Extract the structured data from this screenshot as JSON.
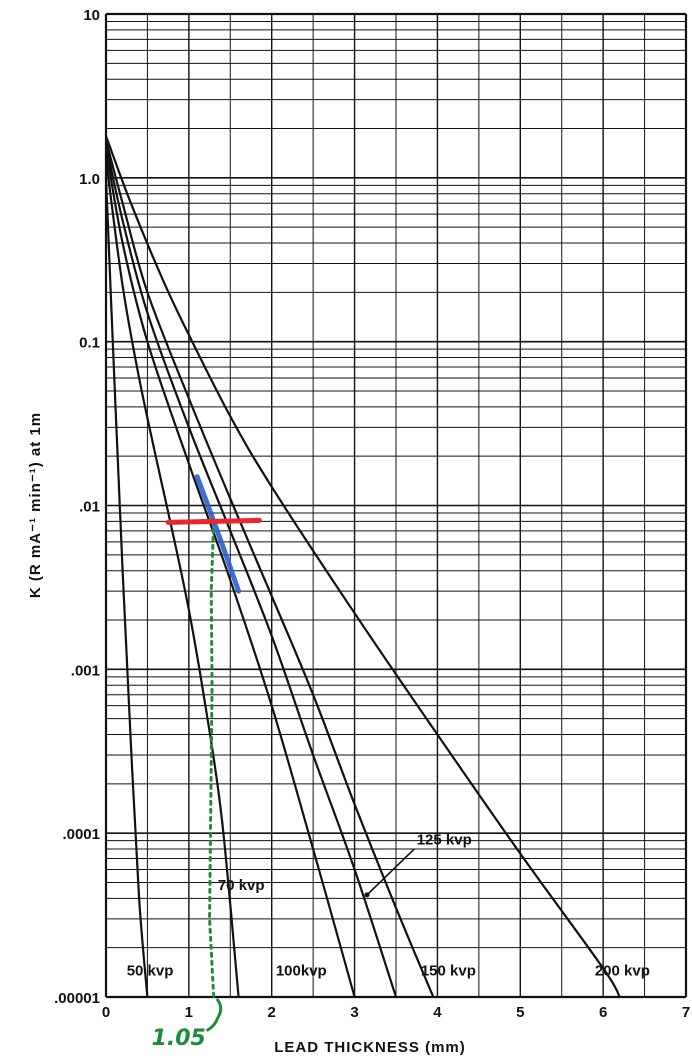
{
  "chart_data": {
    "type": "line",
    "title": "",
    "xlabel": "LEAD THICKNESS (mm)",
    "ylabel": "K (R mA⁻¹ min⁻¹) at 1m",
    "xlim": [
      0,
      7
    ],
    "ylim": [
      1e-05,
      10
    ],
    "yscale": "log",
    "grid": true,
    "x_ticks": [
      "0",
      "1",
      "2",
      "3",
      "4",
      "5",
      "6",
      "7"
    ],
    "y_ticks": [
      "10",
      "1.0",
      "0.1",
      ".01",
      ".001",
      ".0001",
      ".00001"
    ],
    "series": [
      {
        "name": "50 kvp",
        "x": [
          0,
          0.1,
          0.2,
          0.3,
          0.4,
          0.5
        ],
        "y": [
          1.0,
          0.06,
          0.004,
          0.00035,
          4e-05,
          1e-05
        ]
      },
      {
        "name": "70 kvp",
        "x": [
          0,
          0.2,
          0.4,
          0.6,
          0.8,
          1.0,
          1.2,
          1.4,
          1.6
        ],
        "y": [
          1.3,
          0.22,
          0.06,
          0.02,
          0.007,
          0.0023,
          0.0006,
          0.00012,
          1e-05
        ]
      },
      {
        "name": "100kvp",
        "x": [
          0,
          0.2,
          0.5,
          1.0,
          1.5,
          2.0,
          2.5,
          3.0
        ],
        "y": [
          1.5,
          0.4,
          0.1,
          0.018,
          0.0035,
          0.0006,
          8e-05,
          1e-05
        ]
      },
      {
        "name": "125 kvp",
        "x": [
          0,
          0.2,
          0.5,
          1.0,
          1.5,
          2.0,
          2.5,
          3.0,
          3.5
        ],
        "y": [
          1.6,
          0.55,
          0.15,
          0.03,
          0.007,
          0.0016,
          0.0003,
          6e-05,
          1e-05
        ]
      },
      {
        "name": "150 kvp",
        "x": [
          0,
          0.2,
          0.5,
          1.0,
          1.5,
          2.0,
          2.5,
          3.0,
          3.5,
          3.95
        ],
        "y": [
          1.7,
          0.7,
          0.2,
          0.045,
          0.011,
          0.0028,
          0.0007,
          0.00015,
          3.5e-05,
          1e-05
        ]
      },
      {
        "name": "200 kvp",
        "x": [
          0,
          0.3,
          0.7,
          1.0,
          1.5,
          2.0,
          3.0,
          4.0,
          5.0,
          6.0,
          6.2
        ],
        "y": [
          1.8,
          0.7,
          0.23,
          0.11,
          0.035,
          0.013,
          0.0022,
          0.0004,
          7.5e-05,
          1.5e-05,
          1e-05
        ]
      }
    ],
    "annotations": [
      {
        "text": "1.05",
        "color": "#1e8a3c",
        "x": 1.05,
        "y": 1e-05,
        "note": "handwritten"
      },
      {
        "marker": "red horizontal line",
        "color": "#e8262c",
        "y": 0.008,
        "x_range": [
          0.75,
          1.85
        ]
      },
      {
        "marker": "blue highlighted curve segment",
        "color": "#2a5fd0",
        "x_range": [
          1.1,
          1.6
        ],
        "y_range": [
          0.003,
          0.015
        ]
      },
      {
        "marker": "green dotted drop line",
        "color": "#1e8a3c",
        "x": 1.3,
        "y_range": [
          1e-05,
          0.008
        ]
      }
    ]
  }
}
